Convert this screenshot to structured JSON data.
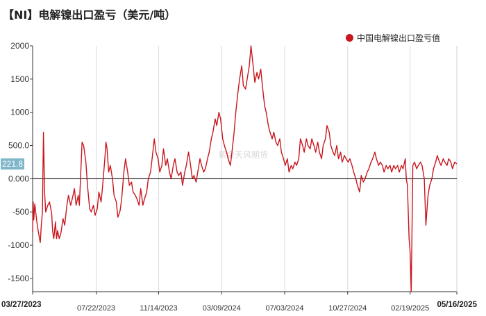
{
  "title": "【NI】电解镍出口盈亏（美元/吨）",
  "watermark": "紫金天风期货",
  "chart_data": {
    "type": "line",
    "title": "【NI】电解镍出口盈亏（美元/吨）",
    "xlabel": "",
    "ylabel": "",
    "ylim": [
      -1700,
      2000
    ],
    "yticks": [
      2000,
      1500,
      1000,
      "500.0",
      "0.000",
      -500,
      -1000,
      -1500
    ],
    "x_start": "03/27/2023",
    "x_end": "05/16/2025",
    "xticks": [
      "03/27/2023",
      "07/22/2023",
      "11/14/2023",
      "03/09/2024",
      "07/03/2024",
      "10/27/2024",
      "02/19/2025",
      "05/16/2025"
    ],
    "grid": "vertical",
    "legend_position": "top-right",
    "last_value_label": "221.8",
    "series": [
      {
        "name": "中国电解镍出口盈亏值",
        "color": "#c8161d",
        "points": [
          [
            "2023-03-27",
            -800
          ],
          [
            "2023-03-28",
            -350
          ],
          [
            "2023-03-29",
            -620
          ],
          [
            "2023-03-31",
            -380
          ],
          [
            "2023-04-03",
            -600
          ],
          [
            "2023-04-05",
            -720
          ],
          [
            "2023-04-07",
            -820
          ],
          [
            "2023-04-10",
            -960
          ],
          [
            "2023-04-12",
            -700
          ],
          [
            "2023-04-14",
            -500
          ],
          [
            "2023-04-16",
            700
          ],
          [
            "2023-04-18",
            -200
          ],
          [
            "2023-04-20",
            -500
          ],
          [
            "2023-04-24",
            -400
          ],
          [
            "2023-04-27",
            -350
          ],
          [
            "2023-05-01",
            -520
          ],
          [
            "2023-05-03",
            -800
          ],
          [
            "2023-05-05",
            -900
          ],
          [
            "2023-05-08",
            -650
          ],
          [
            "2023-05-10",
            -900
          ],
          [
            "2023-05-12",
            -780
          ],
          [
            "2023-05-15",
            -900
          ],
          [
            "2023-05-18",
            -820
          ],
          [
            "2023-05-22",
            -600
          ],
          [
            "2023-05-25",
            -700
          ],
          [
            "2023-05-29",
            -400
          ],
          [
            "2023-06-01",
            -250
          ],
          [
            "2023-06-05",
            -400
          ],
          [
            "2023-06-08",
            -300
          ],
          [
            "2023-06-12",
            -150
          ],
          [
            "2023-06-15",
            -400
          ],
          [
            "2023-06-19",
            -250
          ],
          [
            "2023-06-21",
            -400
          ],
          [
            "2023-06-26",
            550
          ],
          [
            "2023-06-29",
            500
          ],
          [
            "2023-07-03",
            250
          ],
          [
            "2023-07-06",
            -100
          ],
          [
            "2023-07-10",
            -450
          ],
          [
            "2023-07-13",
            -500
          ],
          [
            "2023-07-17",
            -400
          ],
          [
            "2023-07-20",
            -550
          ],
          [
            "2023-07-24",
            -450
          ],
          [
            "2023-07-27",
            -200
          ],
          [
            "2023-07-31",
            -350
          ],
          [
            "2023-08-03",
            -100
          ],
          [
            "2023-08-07",
            300
          ],
          [
            "2023-08-09",
            550
          ],
          [
            "2023-08-11",
            450
          ],
          [
            "2023-08-14",
            100
          ],
          [
            "2023-08-17",
            200
          ],
          [
            "2023-08-21",
            0
          ],
          [
            "2023-08-24",
            -250
          ],
          [
            "2023-08-28",
            -350
          ],
          [
            "2023-08-31",
            -580
          ],
          [
            "2023-09-04",
            -480
          ],
          [
            "2023-09-07",
            -300
          ],
          [
            "2023-09-11",
            100
          ],
          [
            "2023-09-14",
            300
          ],
          [
            "2023-09-18",
            100
          ],
          [
            "2023-09-21",
            -100
          ],
          [
            "2023-09-25",
            -50
          ],
          [
            "2023-09-28",
            -200
          ],
          [
            "2023-10-02",
            -250
          ],
          [
            "2023-10-05",
            -300
          ],
          [
            "2023-10-09",
            -400
          ],
          [
            "2023-10-12",
            -150
          ],
          [
            "2023-10-16",
            -400
          ],
          [
            "2023-10-19",
            -300
          ],
          [
            "2023-10-23",
            -200
          ],
          [
            "2023-10-26",
            0
          ],
          [
            "2023-10-30",
            100
          ],
          [
            "2023-11-02",
            300
          ],
          [
            "2023-11-06",
            600
          ],
          [
            "2023-11-09",
            400
          ],
          [
            "2023-11-13",
            300
          ],
          [
            "2023-11-16",
            100
          ],
          [
            "2023-11-20",
            200
          ],
          [
            "2023-11-23",
            450
          ],
          [
            "2023-11-27",
            200
          ],
          [
            "2023-11-30",
            300
          ],
          [
            "2023-12-04",
            100
          ],
          [
            "2023-12-07",
            0
          ],
          [
            "2023-12-11",
            200
          ],
          [
            "2023-12-14",
            300
          ],
          [
            "2023-12-18",
            100
          ],
          [
            "2023-12-21",
            50
          ],
          [
            "2023-12-25",
            100
          ],
          [
            "2023-12-28",
            -100
          ],
          [
            "2024-01-01",
            100
          ],
          [
            "2024-01-04",
            200
          ],
          [
            "2024-01-08",
            400
          ],
          [
            "2024-01-11",
            250
          ],
          [
            "2024-01-15",
            0
          ],
          [
            "2024-01-18",
            50
          ],
          [
            "2024-01-22",
            -50
          ],
          [
            "2024-01-25",
            100
          ],
          [
            "2024-01-29",
            300
          ],
          [
            "2024-02-01",
            200
          ],
          [
            "2024-02-05",
            100
          ],
          [
            "2024-02-08",
            150
          ],
          [
            "2024-02-12",
            300
          ],
          [
            "2024-02-15",
            400
          ],
          [
            "2024-02-19",
            600
          ],
          [
            "2024-02-22",
            700
          ],
          [
            "2024-02-26",
            900
          ],
          [
            "2024-02-29",
            800
          ],
          [
            "2024-03-04",
            1000
          ],
          [
            "2024-03-07",
            900
          ],
          [
            "2024-03-11",
            600
          ],
          [
            "2024-03-14",
            500
          ],
          [
            "2024-03-18",
            400
          ],
          [
            "2024-03-21",
            300
          ],
          [
            "2024-03-25",
            200
          ],
          [
            "2024-03-28",
            400
          ],
          [
            "2024-04-01",
            700
          ],
          [
            "2024-04-04",
            1000
          ],
          [
            "2024-04-08",
            1300
          ],
          [
            "2024-04-11",
            1500
          ],
          [
            "2024-04-15",
            1700
          ],
          [
            "2024-04-18",
            1400
          ],
          [
            "2024-04-22",
            1350
          ],
          [
            "2024-04-25",
            1500
          ],
          [
            "2024-04-29",
            1700
          ],
          [
            "2024-05-02",
            2000
          ],
          [
            "2024-05-06",
            1700
          ],
          [
            "2024-05-09",
            1450
          ],
          [
            "2024-05-13",
            1600
          ],
          [
            "2024-05-16",
            1500
          ],
          [
            "2024-05-20",
            1650
          ],
          [
            "2024-05-23",
            1400
          ],
          [
            "2024-05-27",
            1100
          ],
          [
            "2024-05-30",
            1000
          ],
          [
            "2024-06-03",
            800
          ],
          [
            "2024-06-06",
            700
          ],
          [
            "2024-06-10",
            600
          ],
          [
            "2024-06-13",
            700
          ],
          [
            "2024-06-17",
            550
          ],
          [
            "2024-06-20",
            500
          ],
          [
            "2024-06-24",
            600
          ],
          [
            "2024-06-27",
            400
          ],
          [
            "2024-07-01",
            300
          ],
          [
            "2024-07-04",
            200
          ],
          [
            "2024-07-08",
            300
          ],
          [
            "2024-07-11",
            100
          ],
          [
            "2024-07-15",
            200
          ],
          [
            "2024-07-18",
            150
          ],
          [
            "2024-07-22",
            250
          ],
          [
            "2024-07-25",
            200
          ],
          [
            "2024-07-29",
            300
          ],
          [
            "2024-08-01",
            600
          ],
          [
            "2024-08-05",
            500
          ],
          [
            "2024-08-08",
            400
          ],
          [
            "2024-08-12",
            600
          ],
          [
            "2024-08-15",
            500
          ],
          [
            "2024-08-19",
            450
          ],
          [
            "2024-08-22",
            600
          ],
          [
            "2024-08-26",
            500
          ],
          [
            "2024-08-29",
            400
          ],
          [
            "2024-09-02",
            550
          ],
          [
            "2024-09-05",
            400
          ],
          [
            "2024-09-09",
            300
          ],
          [
            "2024-09-12",
            500
          ],
          [
            "2024-09-16",
            600
          ],
          [
            "2024-09-19",
            800
          ],
          [
            "2024-09-23",
            700
          ],
          [
            "2024-09-26",
            500
          ],
          [
            "2024-09-30",
            400
          ],
          [
            "2024-10-03",
            350
          ],
          [
            "2024-10-07",
            500
          ],
          [
            "2024-10-10",
            300
          ],
          [
            "2024-10-14",
            400
          ],
          [
            "2024-10-17",
            250
          ],
          [
            "2024-10-21",
            350
          ],
          [
            "2024-10-24",
            300
          ],
          [
            "2024-10-28",
            250
          ],
          [
            "2024-10-31",
            300
          ],
          [
            "2024-11-04",
            200
          ],
          [
            "2024-11-07",
            100
          ],
          [
            "2024-11-11",
            0
          ],
          [
            "2024-11-14",
            -100
          ],
          [
            "2024-11-18",
            -200
          ],
          [
            "2024-11-21",
            50
          ],
          [
            "2024-11-25",
            -50
          ],
          [
            "2024-11-28",
            0
          ],
          [
            "2024-12-02",
            100
          ],
          [
            "2024-12-05",
            150
          ],
          [
            "2024-12-09",
            250
          ],
          [
            "2024-12-12",
            300
          ],
          [
            "2024-12-16",
            400
          ],
          [
            "2024-12-19",
            300
          ],
          [
            "2024-12-23",
            200
          ],
          [
            "2024-12-26",
            250
          ],
          [
            "2024-12-30",
            200
          ],
          [
            "2025-01-02",
            100
          ],
          [
            "2025-01-06",
            200
          ],
          [
            "2025-01-09",
            150
          ],
          [
            "2025-01-13",
            200
          ],
          [
            "2025-01-16",
            100
          ],
          [
            "2025-01-20",
            200
          ],
          [
            "2025-01-23",
            150
          ],
          [
            "2025-01-27",
            200
          ],
          [
            "2025-01-30",
            100
          ],
          [
            "2025-02-03",
            200
          ],
          [
            "2025-02-06",
            150
          ],
          [
            "2025-02-10",
            300
          ],
          [
            "2025-02-12",
            0
          ],
          [
            "2025-02-14",
            -100
          ],
          [
            "2025-02-17",
            -900
          ],
          [
            "2025-02-19",
            -1100
          ],
          [
            "2025-02-21",
            -1700
          ],
          [
            "2025-02-24",
            200
          ],
          [
            "2025-02-27",
            250
          ],
          [
            "2025-03-03",
            150
          ],
          [
            "2025-03-06",
            200
          ],
          [
            "2025-03-10",
            250
          ],
          [
            "2025-03-13",
            200
          ],
          [
            "2025-03-17",
            0
          ],
          [
            "2025-03-20",
            -700
          ],
          [
            "2025-03-24",
            -250
          ],
          [
            "2025-03-27",
            -100
          ],
          [
            "2025-03-31",
            0
          ],
          [
            "2025-04-03",
            150
          ],
          [
            "2025-04-07",
            250
          ],
          [
            "2025-04-10",
            350
          ],
          [
            "2025-04-14",
            250
          ],
          [
            "2025-04-17",
            200
          ],
          [
            "2025-04-21",
            300
          ],
          [
            "2025-04-24",
            250
          ],
          [
            "2025-04-28",
            200
          ],
          [
            "2025-05-01",
            300
          ],
          [
            "2025-05-05",
            250
          ],
          [
            "2025-05-08",
            150
          ],
          [
            "2025-05-12",
            250
          ],
          [
            "2025-05-16",
            221.8
          ]
        ]
      }
    ]
  }
}
